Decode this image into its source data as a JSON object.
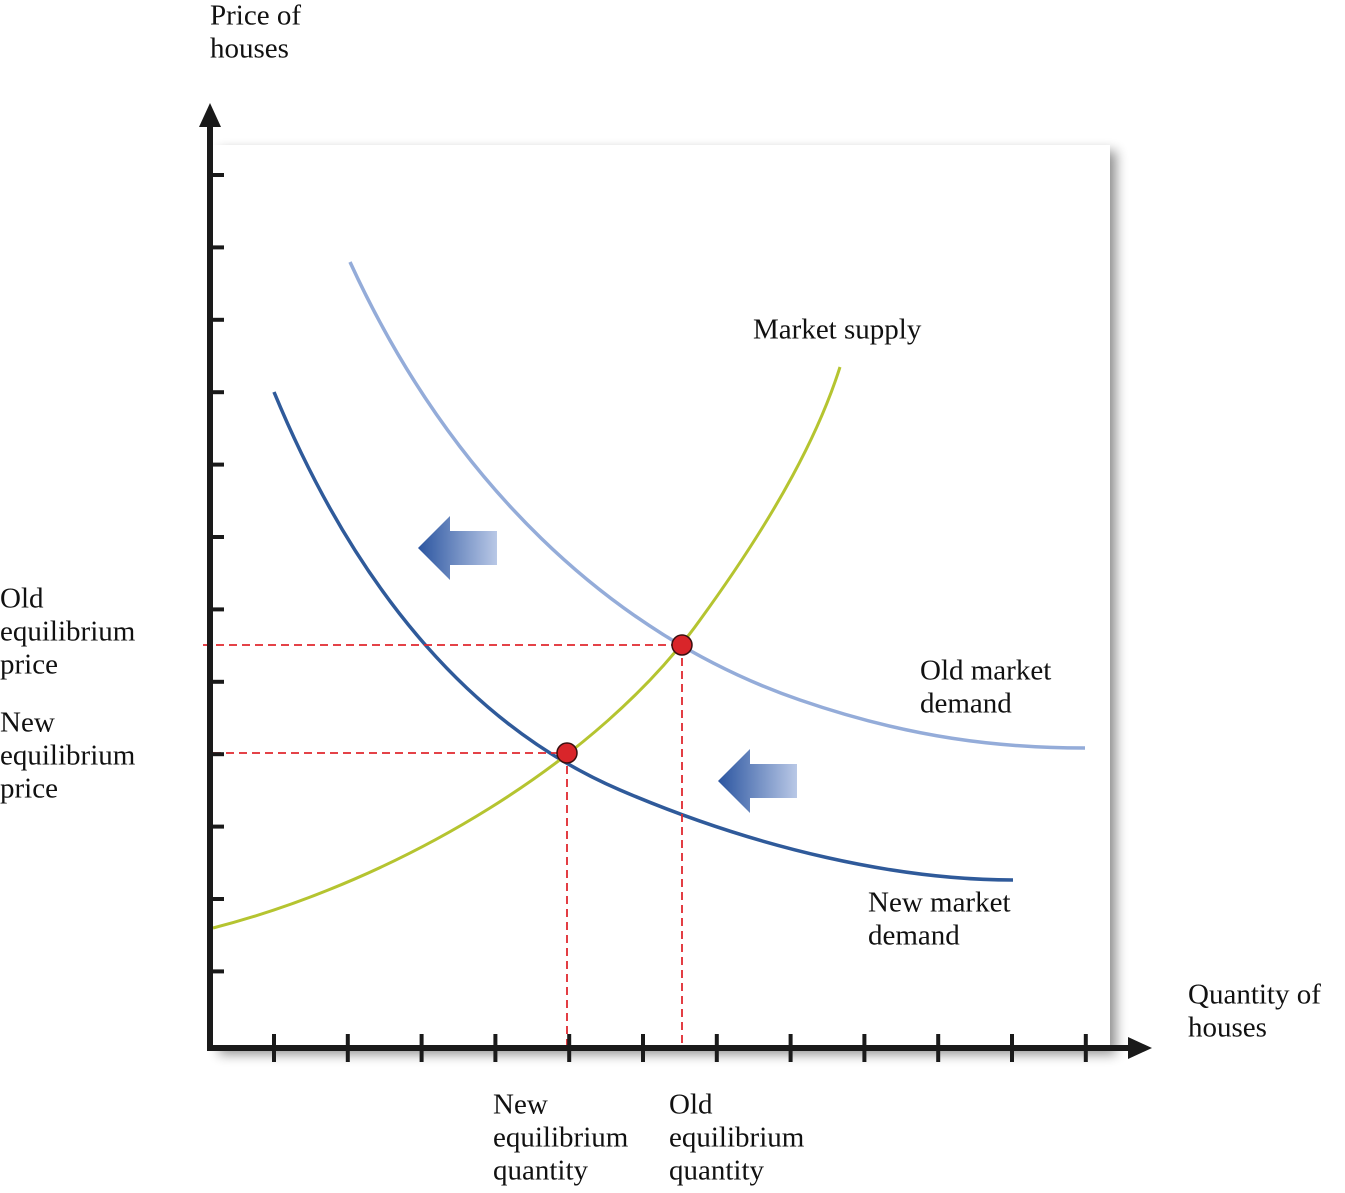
{
  "y_axis": {
    "label": [
      "Price of",
      "houses"
    ]
  },
  "x_axis": {
    "label": [
      "Quantity of",
      "houses"
    ]
  },
  "curves": {
    "supply": [
      "Market supply"
    ],
    "old_demand": [
      "Old market",
      "demand"
    ],
    "new_demand": [
      "New market",
      "demand"
    ]
  },
  "equilibrium": {
    "old_price": [
      "Old",
      "equilibrium",
      "price"
    ],
    "new_price": [
      "New",
      "equilibrium",
      "price"
    ],
    "new_quantity": [
      "New",
      "equilibrium",
      "quantity"
    ],
    "old_quantity": [
      "Old",
      "equilibrium",
      "quantity"
    ]
  }
}
